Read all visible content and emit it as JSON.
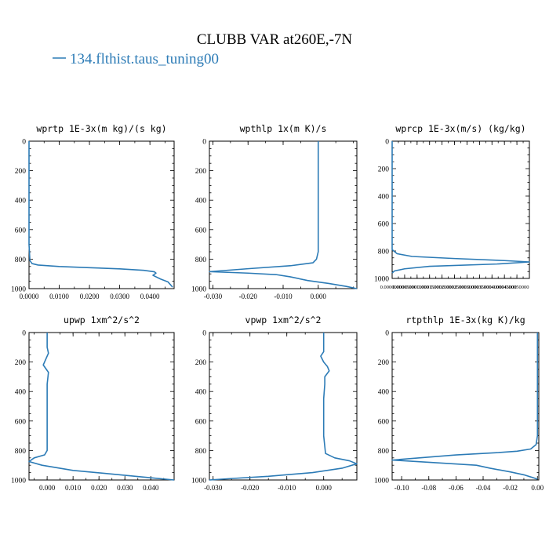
{
  "title": "CLUBB VAR at260E,-7N",
  "legend": {
    "label": "134.flthist.taus_tuning00",
    "color": "#2c7bb6"
  },
  "chart_data": [
    {
      "type": "line",
      "title": "wprtp  1E-3x(m kg)/(s kg)",
      "xlim": [
        0,
        0.048
      ],
      "ylim": [
        1000,
        0
      ],
      "xticks": [
        0,
        0.01,
        0.02,
        0.03,
        0.04
      ],
      "xtick_labels": [
        "0.0000",
        "0.0100",
        "0.0200",
        "0.0300",
        "0.0400"
      ],
      "yticks": [
        0,
        200,
        400,
        600,
        800,
        1000
      ],
      "series": [
        {
          "name": "134.flthist.taus_tuning00",
          "x": [
            0,
            0,
            0,
            0.0003,
            0.001,
            0.003,
            0.01,
            0.02,
            0.03,
            0.038,
            0.0415,
            0.042,
            0.041,
            0.0435,
            0.046,
            0.0475
          ],
          "y": [
            0,
            400,
            700,
            810,
            830,
            840,
            850,
            858,
            866,
            876,
            886,
            895,
            910,
            935,
            955,
            990
          ]
        }
      ]
    },
    {
      "type": "line",
      "title": "wpthlp  1x(m K)/s",
      "xlim": [
        -0.031,
        0.011
      ],
      "ylim": [
        1000,
        0
      ],
      "xticks": [
        -0.03,
        -0.02,
        -0.01,
        0
      ],
      "xtick_labels": [
        "-0.030",
        "-0.020",
        "-0.010",
        "0.000"
      ],
      "yticks": [
        0,
        200,
        400,
        600,
        800,
        1000
      ],
      "series": [
        {
          "name": "134.flthist.taus_tuning00",
          "x": [
            0,
            0,
            0,
            0,
            -0.0005,
            -0.0015,
            -0.008,
            -0.02,
            -0.031,
            -0.02,
            -0.012,
            -0.008,
            -0.003,
            0.003,
            0.008,
            0.011
          ],
          "y": [
            0,
            200,
            500,
            750,
            800,
            825,
            845,
            865,
            885,
            895,
            905,
            920,
            945,
            965,
            985,
            1000
          ]
        }
      ]
    },
    {
      "type": "line",
      "title": "wprcp  1E-3x(m/s) (kg/kg)",
      "xlim": [
        0,
        0.00055
      ],
      "ylim": [
        1000,
        0
      ],
      "xticks": [
        0,
        5e-05,
        0.0001,
        0.00015,
        0.0002,
        0.00025,
        0.0003,
        0.00035,
        0.0004,
        0.00045,
        0.0005
      ],
      "xtick_labels": [
        "0.00000000",
        "0.00005000",
        "0.00010000",
        "0.00015000",
        "0.00020000",
        "0.00025000",
        "0.00030000",
        "0.00035000",
        "0.00040000",
        "0.00045000",
        "0.00050000"
      ],
      "yticks": [
        0,
        200,
        400,
        600,
        800,
        1000
      ],
      "series": [
        {
          "name": "134.flthist.taus_tuning00",
          "x": [
            0,
            0,
            0,
            2e-05,
            8e-05,
            0.00025,
            0.00045,
            0.00055,
            0.00042,
            0.00015,
            5e-05,
            1e-05,
            0
          ],
          "y": [
            0,
            500,
            790,
            820,
            840,
            855,
            870,
            880,
            895,
            912,
            930,
            945,
            960
          ]
        }
      ]
    },
    {
      "type": "line",
      "title": "upwp  1xm^2/s^2",
      "xlim": [
        -0.007,
        0.049
      ],
      "ylim": [
        1000,
        0
      ],
      "xticks": [
        0,
        0.01,
        0.02,
        0.03,
        0.04
      ],
      "xtick_labels": [
        "0.000",
        "0.010",
        "0.020",
        "0.030",
        "0.040"
      ],
      "yticks": [
        0,
        200,
        400,
        600,
        800,
        1000
      ],
      "series": [
        {
          "name": "134.flthist.taus_tuning00",
          "x": [
            0,
            0,
            0.0005,
            -0.0005,
            -0.0015,
            0.0005,
            0,
            0,
            0,
            0,
            0,
            -0.001,
            -0.005,
            -0.007,
            -0.002,
            0.01,
            0.025,
            0.04,
            0.049
          ],
          "y": [
            0,
            100,
            140,
            180,
            220,
            270,
            350,
            450,
            600,
            700,
            800,
            830,
            850,
            875,
            900,
            935,
            960,
            985,
            1000
          ]
        }
      ]
    },
    {
      "type": "line",
      "title": "vpwp  1xm^2/s^2",
      "xlim": [
        -0.031,
        0.009
      ],
      "ylim": [
        1000,
        0
      ],
      "xticks": [
        -0.03,
        -0.02,
        -0.01,
        0
      ],
      "xtick_labels": [
        "-0.030",
        "-0.020",
        "-0.010",
        "0.000"
      ],
      "yticks": [
        0,
        200,
        400,
        600,
        800,
        1000
      ],
      "series": [
        {
          "name": "134.flthist.taus_tuning00",
          "x": [
            0,
            0,
            0,
            -0.0008,
            0,
            0.001,
            0.0015,
            0.0003,
            0.0003,
            0,
            0,
            0.0005,
            0.003,
            0.007,
            0.009,
            0.005,
            -0.003,
            -0.015,
            -0.025,
            -0.031
          ],
          "y": [
            0,
            100,
            130,
            160,
            200,
            230,
            260,
            300,
            350,
            450,
            700,
            820,
            850,
            870,
            890,
            920,
            950,
            975,
            990,
            1000
          ]
        }
      ]
    },
    {
      "type": "line",
      "title": "rtpthlp  1E-3x(kg K)/kg",
      "xlim": [
        -0.107,
        0.001
      ],
      "ylim": [
        1000,
        0
      ],
      "xticks": [
        -0.1,
        -0.08,
        -0.06,
        -0.04,
        -0.02,
        0
      ],
      "xtick_labels": [
        "-0.10",
        "-0.08",
        "-0.06",
        "-0.04",
        "-0.02",
        "0.00"
      ],
      "yticks": [
        0,
        200,
        400,
        600,
        800,
        1000
      ],
      "series": [
        {
          "name": "134.flthist.taus_tuning00",
          "x": [
            0,
            0,
            0,
            -0.001,
            -0.005,
            -0.015,
            -0.03,
            -0.06,
            -0.107,
            -0.08,
            -0.045,
            -0.035,
            -0.02,
            -0.01,
            -0.003,
            0
          ],
          "y": [
            0,
            400,
            700,
            760,
            790,
            805,
            815,
            830,
            865,
            880,
            900,
            920,
            945,
            965,
            985,
            995
          ]
        }
      ]
    }
  ]
}
